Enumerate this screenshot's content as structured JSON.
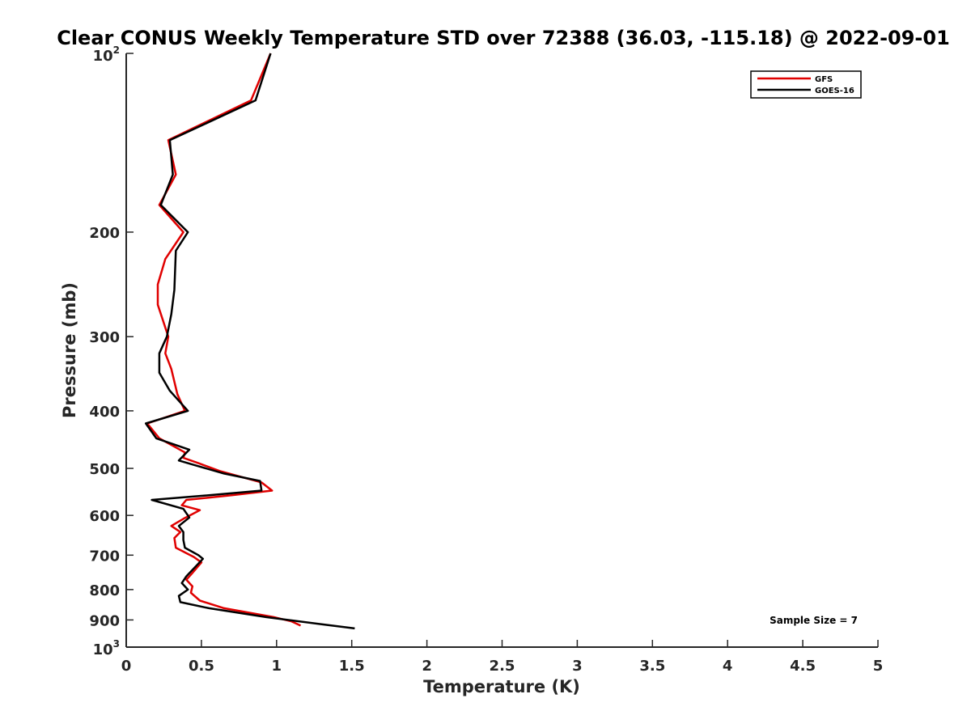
{
  "chart_data": {
    "type": "line",
    "title": "Clear CONUS Weekly Temperature STD over 72388 (36.03, -115.18) @ 2022-09-01",
    "xlabel": "Temperature (K)",
    "ylabel": "Pressure (mb)",
    "xlim": [
      0,
      5
    ],
    "ylim": [
      100,
      1000
    ],
    "y_scale": "log",
    "y_reversed": true,
    "x_ticks": [
      0,
      0.5,
      1,
      1.5,
      2,
      2.5,
      3,
      3.5,
      4,
      4.5,
      5
    ],
    "x_tick_labels": [
      "0",
      "0.5",
      "1",
      "1.5",
      "2",
      "2.5",
      "3",
      "3.5",
      "4",
      "4.5",
      "5"
    ],
    "y_ticks": [
      200,
      300,
      400,
      500,
      600,
      700,
      800,
      900
    ],
    "y_tick_labels": [
      "200",
      "300",
      "400",
      "500",
      "600",
      "700",
      "800",
      "900"
    ],
    "y_end_ticks": [
      {
        "value": 100,
        "base": "10",
        "exp": "2"
      },
      {
        "value": 1000,
        "base": "10",
        "exp": "3"
      }
    ],
    "grid": false,
    "legend_position": "top-right",
    "annotation": "Sample Size = 7",
    "series": [
      {
        "name": "GFS",
        "color": "#e00000",
        "points": [
          [
            0.96,
            100
          ],
          [
            0.83,
            120
          ],
          [
            0.28,
            140
          ],
          [
            0.33,
            160
          ],
          [
            0.22,
            180
          ],
          [
            0.38,
            200
          ],
          [
            0.26,
            222
          ],
          [
            0.21,
            245
          ],
          [
            0.21,
            265
          ],
          [
            0.28,
            300
          ],
          [
            0.26,
            320
          ],
          [
            0.3,
            340
          ],
          [
            0.34,
            375
          ],
          [
            0.39,
            400
          ],
          [
            0.14,
            420
          ],
          [
            0.22,
            445
          ],
          [
            0.39,
            470
          ],
          [
            0.38,
            480
          ],
          [
            0.48,
            490
          ],
          [
            0.62,
            505
          ],
          [
            0.9,
            528
          ],
          [
            0.97,
            545
          ],
          [
            0.7,
            555
          ],
          [
            0.4,
            565
          ],
          [
            0.37,
            577
          ],
          [
            0.49,
            588
          ],
          [
            0.38,
            608
          ],
          [
            0.3,
            625
          ],
          [
            0.36,
            640
          ],
          [
            0.32,
            655
          ],
          [
            0.33,
            680
          ],
          [
            0.45,
            705
          ],
          [
            0.5,
            720
          ],
          [
            0.44,
            750
          ],
          [
            0.4,
            770
          ],
          [
            0.44,
            790
          ],
          [
            0.43,
            810
          ],
          [
            0.49,
            835
          ],
          [
            0.65,
            860
          ],
          [
            0.98,
            890
          ],
          [
            1.1,
            905
          ],
          [
            1.16,
            920
          ]
        ]
      },
      {
        "name": "GOES-16",
        "color": "#000000",
        "points": [
          [
            0.96,
            100
          ],
          [
            0.86,
            120
          ],
          [
            0.29,
            140
          ],
          [
            0.31,
            160
          ],
          [
            0.23,
            180
          ],
          [
            0.41,
            200
          ],
          [
            0.33,
            215
          ],
          [
            0.32,
            250
          ],
          [
            0.3,
            275
          ],
          [
            0.27,
            300
          ],
          [
            0.22,
            320
          ],
          [
            0.22,
            345
          ],
          [
            0.29,
            370
          ],
          [
            0.41,
            400
          ],
          [
            0.13,
            420
          ],
          [
            0.2,
            445
          ],
          [
            0.42,
            465
          ],
          [
            0.35,
            485
          ],
          [
            0.47,
            495
          ],
          [
            0.65,
            510
          ],
          [
            0.89,
            525
          ],
          [
            0.9,
            545
          ],
          [
            0.55,
            555
          ],
          [
            0.17,
            565
          ],
          [
            0.38,
            585
          ],
          [
            0.42,
            605
          ],
          [
            0.35,
            625
          ],
          [
            0.38,
            640
          ],
          [
            0.38,
            660
          ],
          [
            0.39,
            680
          ],
          [
            0.48,
            700
          ],
          [
            0.51,
            710
          ],
          [
            0.4,
            760
          ],
          [
            0.37,
            780
          ],
          [
            0.41,
            800
          ],
          [
            0.35,
            820
          ],
          [
            0.36,
            840
          ],
          [
            0.55,
            860
          ],
          [
            0.93,
            890
          ],
          [
            1.3,
            915
          ],
          [
            1.52,
            930
          ]
        ]
      }
    ]
  }
}
